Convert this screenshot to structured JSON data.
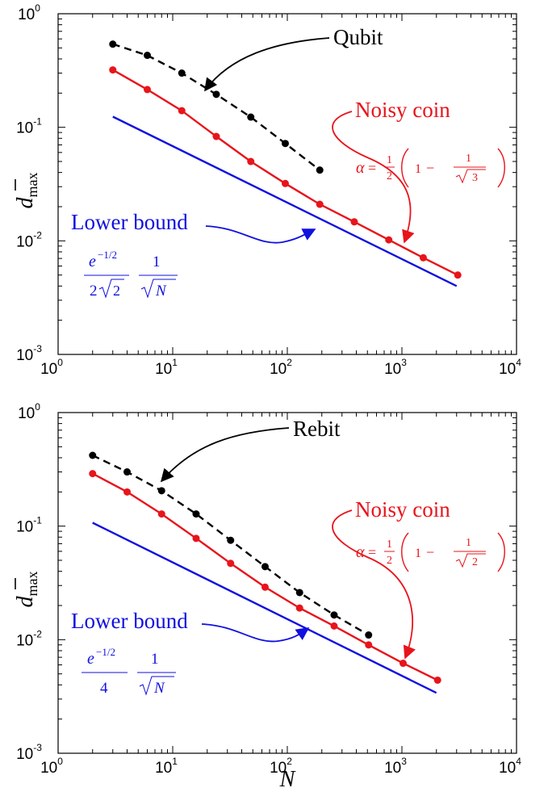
{
  "colors": {
    "data": "#000000",
    "noisy": "#e8141b",
    "bound": "#1010e0"
  },
  "chart_data": [
    {
      "type": "line",
      "xscale": "log",
      "yscale": "log",
      "xlim": [
        1,
        10000
      ],
      "ylim": [
        0.001,
        1
      ],
      "xticks": [
        "10",
        "10",
        "10",
        "10",
        "10"
      ],
      "xtick_exps": [
        "0",
        "1",
        "2",
        "3",
        "4"
      ],
      "yticks": [
        "10",
        "10",
        "10",
        "10"
      ],
      "ytick_exps": [
        "-3",
        "-2",
        "-1",
        "0"
      ],
      "ylabel": "d",
      "ylabel_sub": "max",
      "xlabel": "",
      "series": [
        {
          "name": "Qubit",
          "style": "dashed-markers",
          "x": [
            3,
            6,
            12,
            24,
            48,
            96,
            192
          ],
          "y": [
            0.54,
            0.43,
            0.3,
            0.195,
            0.123,
            0.072,
            0.042
          ]
        },
        {
          "name": "Noisy coin",
          "style": "solid-markers",
          "x": [
            3,
            6,
            12,
            24,
            48,
            96,
            192,
            384,
            768,
            1536,
            3072
          ],
          "y": [
            0.32,
            0.215,
            0.14,
            0.083,
            0.05,
            0.032,
            0.021,
            0.0147,
            0.0102,
            0.0071,
            0.005
          ]
        },
        {
          "name": "Lower bound",
          "style": "solid",
          "x": [
            3,
            3000
          ],
          "y": [
            0.124,
            0.004
          ]
        }
      ],
      "annotations": {
        "data_label": "Qubit",
        "noisy_label": "Noisy coin",
        "bound_label": "Lower bound",
        "alpha_symbol": "α",
        "alpha_eq": "=",
        "half_num": "1",
        "half_den": "2",
        "paren_one": "1",
        "minus": "−",
        "frac_num": "1",
        "sqrt_arg": "3",
        "bound_num_base": "e",
        "bound_num_exp": "−1/2",
        "bound_den_coef": "2",
        "bound_den_sqrt": "2",
        "bound_frac2_num": "1",
        "bound_frac2_sqrt": "N"
      }
    },
    {
      "type": "line",
      "xscale": "log",
      "yscale": "log",
      "xlim": [
        1,
        10000
      ],
      "ylim": [
        0.001,
        1
      ],
      "xticks": [
        "10",
        "10",
        "10",
        "10",
        "10"
      ],
      "xtick_exps": [
        "0",
        "1",
        "2",
        "3",
        "4"
      ],
      "yticks": [
        "10",
        "10",
        "10",
        "10"
      ],
      "ytick_exps": [
        "-3",
        "-2",
        "-1",
        "0"
      ],
      "ylabel": "d",
      "ylabel_sub": "max",
      "xlabel": "N",
      "series": [
        {
          "name": "Rebit",
          "style": "dashed-markers",
          "x": [
            2,
            4,
            8,
            16,
            32,
            64,
            128,
            256,
            512
          ],
          "y": [
            0.42,
            0.3,
            0.205,
            0.128,
            0.075,
            0.044,
            0.026,
            0.0165,
            0.011
          ]
        },
        {
          "name": "Noisy coin",
          "style": "solid-markers",
          "x": [
            2,
            4,
            8,
            16,
            32,
            64,
            128,
            256,
            512,
            1024,
            2048
          ],
          "y": [
            0.29,
            0.2,
            0.128,
            0.078,
            0.047,
            0.029,
            0.019,
            0.0132,
            0.009,
            0.0062,
            0.0044
          ]
        },
        {
          "name": "Lower bound",
          "style": "solid",
          "x": [
            2,
            2000
          ],
          "y": [
            0.107,
            0.0034
          ]
        }
      ],
      "annotations": {
        "data_label": "Rebit",
        "noisy_label": "Noisy coin",
        "bound_label": "Lower bound",
        "alpha_symbol": "α",
        "alpha_eq": "=",
        "half_num": "1",
        "half_den": "2",
        "paren_one": "1",
        "minus": "−",
        "frac_num": "1",
        "sqrt_arg": "2",
        "bound_num_base": "e",
        "bound_num_exp": "−1/2",
        "bound_den_coef": "4",
        "bound_den_sqrt": "",
        "bound_frac2_num": "1",
        "bound_frac2_sqrt": "N"
      }
    }
  ]
}
